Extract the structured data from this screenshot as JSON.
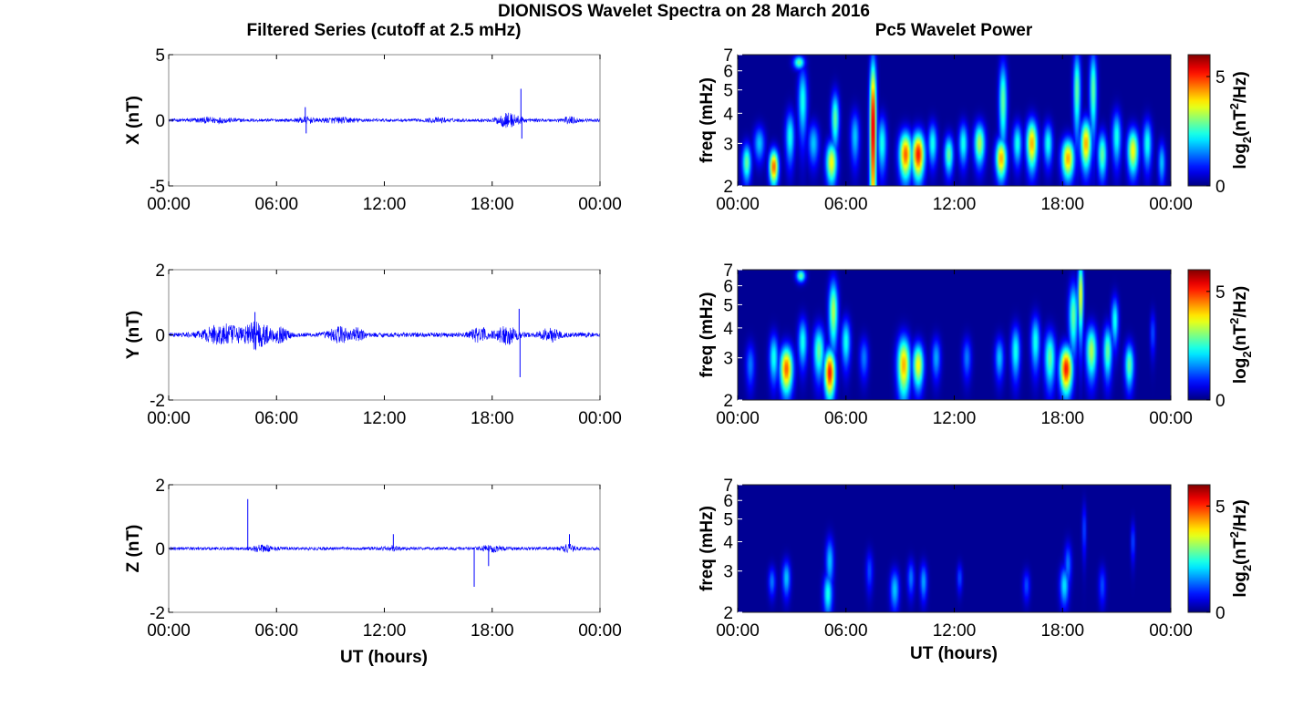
{
  "figure": {
    "title": "DIONISOS Wavelet Spectra on 28 March 2016",
    "left_title": "Filtered Series (cutoff at 2.5 mHz)",
    "right_title": "Pc5 Wavelet Power",
    "xlabel": "UT (hours)"
  },
  "colors": {
    "trace": "#0000ff",
    "axes": "#000000",
    "jet_low": "#00008f",
    "jet_high": "#800000"
  },
  "chart_data": [
    {
      "type": "line",
      "component": "X",
      "ylabel": "X (nT)",
      "x_ticks": [
        "00:00",
        "06:00",
        "12:00",
        "18:00",
        "00:00"
      ],
      "xlim_hours": [
        0,
        24
      ],
      "ylim": [
        -5,
        5
      ],
      "y_ticks": [
        "5",
        "0",
        "-5"
      ],
      "grid": false,
      "series": [
        {
          "noise_amp": 0.12,
          "bursts": [
            {
              "t": 2.5,
              "w": 1.2,
              "a": 0.15
            },
            {
              "t": 7.6,
              "w": 0.4,
              "a": 0.2
            },
            {
              "t": 9.5,
              "w": 1.0,
              "a": 0.15
            },
            {
              "t": 15.0,
              "w": 0.6,
              "a": 0.12
            },
            {
              "t": 18.5,
              "w": 0.4,
              "a": 0.12
            },
            {
              "t": 19.0,
              "w": 0.6,
              "a": 0.45
            },
            {
              "t": 22.3,
              "w": 0.5,
              "a": 0.2
            }
          ],
          "spikes": [
            {
              "t": 7.6,
              "v": 1.0
            },
            {
              "t": 7.65,
              "v": -1.0
            },
            {
              "t": 19.6,
              "v": 2.4
            },
            {
              "t": 19.65,
              "v": -1.4
            }
          ]
        }
      ]
    },
    {
      "type": "line",
      "component": "Y",
      "ylabel": "Y (nT)",
      "x_ticks": [
        "00:00",
        "06:00",
        "12:00",
        "18:00",
        "00:00"
      ],
      "xlim_hours": [
        0,
        24
      ],
      "ylim": [
        -2,
        2
      ],
      "y_ticks": [
        "2",
        "0",
        "-2"
      ],
      "grid": false,
      "series": [
        {
          "noise_amp": 0.07,
          "bursts": [
            {
              "t": 3.0,
              "w": 1.0,
              "a": 0.3
            },
            {
              "t": 4.9,
              "w": 0.7,
              "a": 0.4
            },
            {
              "t": 6.2,
              "w": 0.5,
              "a": 0.18
            },
            {
              "t": 9.5,
              "w": 0.6,
              "a": 0.22
            },
            {
              "t": 10.5,
              "w": 0.4,
              "a": 0.15
            },
            {
              "t": 17.3,
              "w": 0.5,
              "a": 0.2
            },
            {
              "t": 18.8,
              "w": 0.6,
              "a": 0.25
            },
            {
              "t": 21.2,
              "w": 0.5,
              "a": 0.18
            }
          ],
          "spikes": [
            {
              "t": 4.8,
              "v": 0.7
            },
            {
              "t": 19.5,
              "v": 0.8
            },
            {
              "t": 19.55,
              "v": -1.3
            }
          ]
        }
      ]
    },
    {
      "type": "line",
      "component": "Z",
      "ylabel": "Z (nT)",
      "x_ticks": [
        "00:00",
        "06:00",
        "12:00",
        "18:00",
        "00:00"
      ],
      "xlim_hours": [
        0,
        24
      ],
      "ylim": [
        -2,
        2
      ],
      "y_ticks": [
        "2",
        "0",
        "-2"
      ],
      "grid": false,
      "series": [
        {
          "noise_amp": 0.05,
          "bursts": [
            {
              "t": 5.2,
              "w": 0.6,
              "a": 0.08
            },
            {
              "t": 12.4,
              "w": 0.5,
              "a": 0.06
            },
            {
              "t": 18.0,
              "w": 0.6,
              "a": 0.08
            },
            {
              "t": 22.2,
              "w": 0.4,
              "a": 0.1
            }
          ],
          "spikes": [
            {
              "t": 4.4,
              "v": 1.55
            },
            {
              "t": 12.5,
              "v": 0.45
            },
            {
              "t": 17.0,
              "v": -1.2
            },
            {
              "t": 17.8,
              "v": -0.55
            },
            {
              "t": 22.3,
              "v": 0.45
            }
          ]
        }
      ]
    },
    {
      "type": "heatmap",
      "component": "X",
      "ylabel": "freq (mHz)",
      "y_scale": "log",
      "ylim": [
        2,
        7
      ],
      "y_ticks": [
        "2",
        "3",
        "4",
        "5",
        "6",
        "7"
      ],
      "x_ticks": [
        "00:00",
        "06:00",
        "12:00",
        "18:00",
        "00:00"
      ],
      "xlim_hours": [
        0,
        24
      ],
      "colorbar": {
        "label": "log2(nT2/Hz)",
        "lim": [
          0,
          6
        ],
        "ticks": [
          "0",
          "5"
        ]
      },
      "blobs": [
        {
          "t": 0.5,
          "f": 2.5,
          "wt": 0.25,
          "wf": 0.45,
          "p": 3.0
        },
        {
          "t": 1.2,
          "f": 3.0,
          "wt": 0.3,
          "wf": 0.5,
          "p": 2.0
        },
        {
          "t": 2.0,
          "f": 2.4,
          "wt": 0.25,
          "wf": 0.4,
          "p": 5.0
        },
        {
          "t": 2.9,
          "f": 3.2,
          "wt": 0.25,
          "wf": 0.8,
          "p": 2.5
        },
        {
          "t": 3.4,
          "f": 6.5,
          "wt": 0.3,
          "wf": 0.4,
          "p": 3.0
        },
        {
          "t": 3.6,
          "f": 4.5,
          "wt": 0.25,
          "wf": 1.5,
          "p": 2.5
        },
        {
          "t": 4.2,
          "f": 3.0,
          "wt": 0.3,
          "wf": 0.6,
          "p": 2.0
        },
        {
          "t": 5.2,
          "f": 2.5,
          "wt": 0.3,
          "wf": 0.5,
          "p": 4.0
        },
        {
          "t": 5.4,
          "f": 3.8,
          "wt": 0.22,
          "wf": 1.0,
          "p": 3.0
        },
        {
          "t": 6.5,
          "f": 3.2,
          "wt": 0.25,
          "wf": 0.8,
          "p": 2.0
        },
        {
          "t": 7.5,
          "f": 3.5,
          "wt": 0.18,
          "wf": 2.8,
          "p": 6.0
        },
        {
          "t": 8.0,
          "f": 3.0,
          "wt": 0.25,
          "wf": 0.8,
          "p": 2.5
        },
        {
          "t": 9.3,
          "f": 2.7,
          "wt": 0.35,
          "wf": 0.6,
          "p": 5.0
        },
        {
          "t": 10.0,
          "f": 2.7,
          "wt": 0.35,
          "wf": 0.6,
          "p": 5.5
        },
        {
          "t": 10.8,
          "f": 3.0,
          "wt": 0.25,
          "wf": 0.6,
          "p": 2.5
        },
        {
          "t": 11.7,
          "f": 2.7,
          "wt": 0.25,
          "wf": 0.5,
          "p": 3.0
        },
        {
          "t": 12.5,
          "f": 3.0,
          "wt": 0.25,
          "wf": 0.6,
          "p": 2.5
        },
        {
          "t": 13.4,
          "f": 3.0,
          "wt": 0.3,
          "wf": 0.6,
          "p": 3.5
        },
        {
          "t": 14.6,
          "f": 2.6,
          "wt": 0.3,
          "wf": 0.5,
          "p": 4.5
        },
        {
          "t": 14.7,
          "f": 4.5,
          "wt": 0.22,
          "wf": 1.8,
          "p": 3.0
        },
        {
          "t": 15.5,
          "f": 3.0,
          "wt": 0.25,
          "wf": 0.6,
          "p": 2.5
        },
        {
          "t": 16.3,
          "f": 3.0,
          "wt": 0.3,
          "wf": 0.7,
          "p": 4.5
        },
        {
          "t": 17.2,
          "f": 3.0,
          "wt": 0.25,
          "wf": 0.6,
          "p": 2.5
        },
        {
          "t": 18.3,
          "f": 2.6,
          "wt": 0.35,
          "wf": 0.5,
          "p": 4.5
        },
        {
          "t": 18.8,
          "f": 5.0,
          "wt": 0.2,
          "wf": 2.0,
          "p": 3.0
        },
        {
          "t": 19.3,
          "f": 3.0,
          "wt": 0.3,
          "wf": 0.7,
          "p": 4.5
        },
        {
          "t": 19.7,
          "f": 5.0,
          "wt": 0.2,
          "wf": 2.0,
          "p": 3.0
        },
        {
          "t": 20.2,
          "f": 2.7,
          "wt": 0.25,
          "wf": 0.6,
          "p": 3.0
        },
        {
          "t": 21.0,
          "f": 3.2,
          "wt": 0.25,
          "wf": 0.8,
          "p": 2.5
        },
        {
          "t": 21.9,
          "f": 2.8,
          "wt": 0.3,
          "wf": 0.6,
          "p": 4.0
        },
        {
          "t": 22.7,
          "f": 3.0,
          "wt": 0.25,
          "wf": 0.7,
          "p": 2.5
        },
        {
          "t": 23.5,
          "f": 2.5,
          "wt": 0.2,
          "wf": 0.5,
          "p": 2.0
        }
      ]
    },
    {
      "type": "heatmap",
      "component": "Y",
      "ylabel": "freq (mHz)",
      "y_scale": "log",
      "ylim": [
        2,
        7
      ],
      "y_ticks": [
        "2",
        "3",
        "4",
        "5",
        "6",
        "7"
      ],
      "x_ticks": [
        "00:00",
        "06:00",
        "12:00",
        "18:00",
        "00:00"
      ],
      "xlim_hours": [
        0,
        24
      ],
      "colorbar": {
        "label": "log2(nT2/Hz)",
        "lim": [
          0,
          6
        ],
        "ticks": [
          "0",
          "5"
        ]
      },
      "blobs": [
        {
          "t": 0.7,
          "f": 2.8,
          "wt": 0.25,
          "wf": 0.6,
          "p": 1.5
        },
        {
          "t": 2.0,
          "f": 3.0,
          "wt": 0.25,
          "wf": 0.7,
          "p": 2.5
        },
        {
          "t": 2.7,
          "f": 2.7,
          "wt": 0.35,
          "wf": 0.6,
          "p": 5.0
        },
        {
          "t": 3.5,
          "f": 6.6,
          "wt": 0.25,
          "wf": 0.4,
          "p": 3.0
        },
        {
          "t": 3.6,
          "f": 3.5,
          "wt": 0.25,
          "wf": 0.8,
          "p": 2.5
        },
        {
          "t": 4.5,
          "f": 3.2,
          "wt": 0.3,
          "wf": 0.8,
          "p": 3.0
        },
        {
          "t": 5.1,
          "f": 2.6,
          "wt": 0.3,
          "wf": 0.6,
          "p": 5.5
        },
        {
          "t": 5.3,
          "f": 4.7,
          "wt": 0.25,
          "wf": 1.5,
          "p": 3.5
        },
        {
          "t": 6.0,
          "f": 3.5,
          "wt": 0.25,
          "wf": 0.8,
          "p": 2.5
        },
        {
          "t": 7.0,
          "f": 3.0,
          "wt": 0.25,
          "wf": 0.6,
          "p": 1.5
        },
        {
          "t": 9.2,
          "f": 2.8,
          "wt": 0.35,
          "wf": 0.8,
          "p": 4.5
        },
        {
          "t": 10.0,
          "f": 2.8,
          "wt": 0.3,
          "wf": 0.6,
          "p": 4.0
        },
        {
          "t": 11.0,
          "f": 3.0,
          "wt": 0.25,
          "wf": 0.6,
          "p": 1.8
        },
        {
          "t": 12.7,
          "f": 3.0,
          "wt": 0.25,
          "wf": 0.6,
          "p": 1.5
        },
        {
          "t": 14.5,
          "f": 3.0,
          "wt": 0.25,
          "wf": 0.6,
          "p": 2.0
        },
        {
          "t": 15.4,
          "f": 3.2,
          "wt": 0.25,
          "wf": 0.8,
          "p": 2.5
        },
        {
          "t": 16.5,
          "f": 3.5,
          "wt": 0.25,
          "wf": 0.9,
          "p": 2.5
        },
        {
          "t": 17.3,
          "f": 3.0,
          "wt": 0.3,
          "wf": 0.8,
          "p": 3.0
        },
        {
          "t": 18.2,
          "f": 2.7,
          "wt": 0.35,
          "wf": 0.6,
          "p": 5.5
        },
        {
          "t": 18.6,
          "f": 4.5,
          "wt": 0.25,
          "wf": 1.5,
          "p": 3.0
        },
        {
          "t": 19.0,
          "f": 5.5,
          "wt": 0.15,
          "wf": 2.0,
          "p": 4.0
        },
        {
          "t": 19.6,
          "f": 3.2,
          "wt": 0.3,
          "wf": 0.8,
          "p": 3.5
        },
        {
          "t": 20.5,
          "f": 3.2,
          "wt": 0.25,
          "wf": 0.8,
          "p": 3.0
        },
        {
          "t": 20.9,
          "f": 4.3,
          "wt": 0.2,
          "wf": 1.0,
          "p": 2.5
        },
        {
          "t": 21.7,
          "f": 2.8,
          "wt": 0.25,
          "wf": 0.6,
          "p": 3.0
        },
        {
          "t": 23.0,
          "f": 3.8,
          "wt": 0.15,
          "wf": 0.8,
          "p": 1.2
        }
      ]
    },
    {
      "type": "heatmap",
      "component": "Z",
      "ylabel": "freq (mHz)",
      "y_scale": "log",
      "ylim": [
        2,
        7
      ],
      "y_ticks": [
        "2",
        "3",
        "4",
        "5",
        "6",
        "7"
      ],
      "x_ticks": [
        "00:00",
        "06:00",
        "12:00",
        "18:00",
        "00:00"
      ],
      "xlim_hours": [
        0,
        24
      ],
      "colorbar": {
        "label": "log2(nT2/Hz)",
        "lim": [
          0,
          6
        ],
        "ticks": [
          "0",
          "5"
        ]
      },
      "blobs": [
        {
          "t": 1.9,
          "f": 2.7,
          "wt": 0.2,
          "wf": 0.4,
          "p": 1.5
        },
        {
          "t": 2.7,
          "f": 2.8,
          "wt": 0.22,
          "wf": 0.5,
          "p": 2.0
        },
        {
          "t": 5.0,
          "f": 2.4,
          "wt": 0.25,
          "wf": 0.5,
          "p": 2.5
        },
        {
          "t": 5.1,
          "f": 3.3,
          "wt": 0.22,
          "wf": 0.8,
          "p": 2.0
        },
        {
          "t": 7.3,
          "f": 3.0,
          "wt": 0.2,
          "wf": 0.6,
          "p": 1.2
        },
        {
          "t": 8.7,
          "f": 2.5,
          "wt": 0.25,
          "wf": 0.5,
          "p": 2.0
        },
        {
          "t": 9.6,
          "f": 2.8,
          "wt": 0.2,
          "wf": 0.5,
          "p": 1.5
        },
        {
          "t": 10.3,
          "f": 2.7,
          "wt": 0.2,
          "wf": 0.5,
          "p": 1.8
        },
        {
          "t": 12.3,
          "f": 2.8,
          "wt": 0.15,
          "wf": 0.4,
          "p": 1.2
        },
        {
          "t": 16.0,
          "f": 2.6,
          "wt": 0.2,
          "wf": 0.4,
          "p": 1.2
        },
        {
          "t": 18.1,
          "f": 2.6,
          "wt": 0.25,
          "wf": 0.5,
          "p": 2.2
        },
        {
          "t": 18.3,
          "f": 3.2,
          "wt": 0.2,
          "wf": 0.7,
          "p": 1.5
        },
        {
          "t": 19.2,
          "f": 4.5,
          "wt": 0.12,
          "wf": 1.2,
          "p": 1.2
        },
        {
          "t": 20.2,
          "f": 2.6,
          "wt": 0.2,
          "wf": 0.5,
          "p": 1.2
        },
        {
          "t": 21.9,
          "f": 4.0,
          "wt": 0.12,
          "wf": 0.8,
          "p": 1.2
        }
      ]
    }
  ]
}
